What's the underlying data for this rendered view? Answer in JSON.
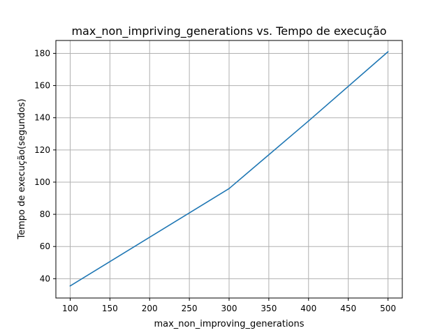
{
  "chart_data": {
    "type": "line",
    "title": "max_non_impriving_generations vs. Tempo de execução",
    "xlabel": "max_non_improving_generations",
    "ylabel": "Tempo de execução(segundos)",
    "x": [
      100,
      300,
      400,
      500
    ],
    "series": [
      {
        "values": [
          35.5,
          96,
          138,
          181
        ]
      }
    ],
    "xlim": [
      82,
      518
    ],
    "ylim": [
      28,
      188
    ],
    "xticks": [
      100,
      150,
      200,
      250,
      300,
      350,
      400,
      450,
      500
    ],
    "yticks": [
      40,
      60,
      80,
      100,
      120,
      140,
      160,
      180
    ],
    "grid": true,
    "line_color": "#1f77b4",
    "grid_color": "#b0b0b0"
  }
}
